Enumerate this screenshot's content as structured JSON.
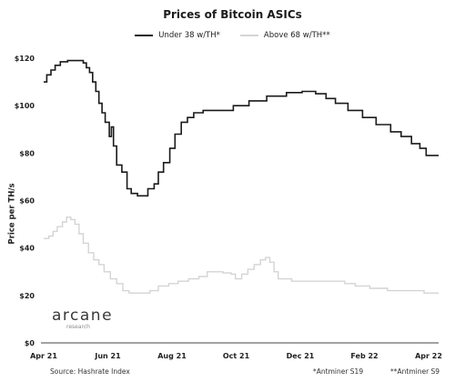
{
  "chart_data": {
    "type": "line",
    "title": "Prices of Bitcoin ASICs",
    "ylabel": "Price per TH/s",
    "xlabel": "",
    "ylim": [
      0,
      120
    ],
    "yticks": [
      "$0",
      "$20",
      "$40",
      "$60",
      "$80",
      "$100",
      "$120"
    ],
    "xticks": [
      "Apr 21",
      "Jun 21",
      "Aug 21",
      "Oct 21",
      "Dec 21",
      "Feb 22",
      "Apr 22"
    ],
    "grid": false,
    "legend_position": "top",
    "series": [
      {
        "name": "Under 38 w/TH*",
        "color": "#1a1a1a",
        "points": [
          [
            "2021-04-01",
            110
          ],
          [
            "2021-04-04",
            113
          ],
          [
            "2021-04-08",
            115
          ],
          [
            "2021-04-12",
            117
          ],
          [
            "2021-04-17",
            118.5
          ],
          [
            "2021-04-24",
            119
          ],
          [
            "2021-05-04",
            119
          ],
          [
            "2021-05-09",
            118
          ],
          [
            "2021-05-12",
            116
          ],
          [
            "2021-05-15",
            114
          ],
          [
            "2021-05-18",
            110
          ],
          [
            "2021-05-21",
            106
          ],
          [
            "2021-05-24",
            101
          ],
          [
            "2021-05-27",
            97
          ],
          [
            "2021-05-30",
            93
          ],
          [
            "2021-06-03",
            87
          ],
          [
            "2021-06-05",
            91
          ],
          [
            "2021-06-07",
            83
          ],
          [
            "2021-06-10",
            75
          ],
          [
            "2021-06-15",
            72
          ],
          [
            "2021-06-20",
            65
          ],
          [
            "2021-06-24",
            63
          ],
          [
            "2021-06-30",
            62
          ],
          [
            "2021-07-08",
            62
          ],
          [
            "2021-07-10",
            65
          ],
          [
            "2021-07-16",
            67
          ],
          [
            "2021-07-20",
            72
          ],
          [
            "2021-07-25",
            76
          ],
          [
            "2021-07-31",
            82
          ],
          [
            "2021-08-05",
            88
          ],
          [
            "2021-08-11",
            93
          ],
          [
            "2021-08-17",
            95
          ],
          [
            "2021-08-23",
            97
          ],
          [
            "2021-09-01",
            98
          ],
          [
            "2021-09-20",
            98
          ],
          [
            "2021-09-30",
            100
          ],
          [
            "2021-10-15",
            102
          ],
          [
            "2021-11-01",
            104
          ],
          [
            "2021-11-20",
            105.5
          ],
          [
            "2021-12-05",
            106
          ],
          [
            "2021-12-18",
            105
          ],
          [
            "2021-12-28",
            103
          ],
          [
            "2022-01-06",
            101
          ],
          [
            "2022-01-18",
            98
          ],
          [
            "2022-02-01",
            95
          ],
          [
            "2022-02-14",
            92
          ],
          [
            "2022-02-28",
            89
          ],
          [
            "2022-03-10",
            87
          ],
          [
            "2022-03-20",
            84
          ],
          [
            "2022-03-28",
            82
          ],
          [
            "2022-04-03",
            79
          ],
          [
            "2022-04-15",
            79
          ]
        ]
      },
      {
        "name": "Above 68 w/TH**",
        "color": "#d4d4d4",
        "points": [
          [
            "2021-04-01",
            44
          ],
          [
            "2021-04-06",
            45
          ],
          [
            "2021-04-10",
            47
          ],
          [
            "2021-04-14",
            49
          ],
          [
            "2021-04-19",
            51
          ],
          [
            "2021-04-23",
            53
          ],
          [
            "2021-04-27",
            52
          ],
          [
            "2021-05-01",
            50
          ],
          [
            "2021-05-05",
            46
          ],
          [
            "2021-05-09",
            42
          ],
          [
            "2021-05-14",
            38
          ],
          [
            "2021-05-19",
            35
          ],
          [
            "2021-05-24",
            33
          ],
          [
            "2021-05-29",
            30
          ],
          [
            "2021-06-04",
            27
          ],
          [
            "2021-06-10",
            25
          ],
          [
            "2021-06-16",
            22
          ],
          [
            "2021-06-22",
            21
          ],
          [
            "2021-07-05",
            21
          ],
          [
            "2021-07-12",
            22
          ],
          [
            "2021-07-20",
            24
          ],
          [
            "2021-07-30",
            25
          ],
          [
            "2021-08-08",
            26
          ],
          [
            "2021-08-18",
            27
          ],
          [
            "2021-08-28",
            28
          ],
          [
            "2021-09-05",
            30
          ],
          [
            "2021-09-20",
            29.5
          ],
          [
            "2021-09-28",
            29
          ],
          [
            "2021-10-02",
            27
          ],
          [
            "2021-10-08",
            29
          ],
          [
            "2021-10-14",
            31
          ],
          [
            "2021-10-20",
            33
          ],
          [
            "2021-10-26",
            35
          ],
          [
            "2021-10-31",
            36
          ],
          [
            "2021-11-04",
            34
          ],
          [
            "2021-11-08",
            30
          ],
          [
            "2021-11-12",
            27
          ],
          [
            "2021-11-25",
            26
          ],
          [
            "2021-12-15",
            26
          ],
          [
            "2022-01-05",
            26
          ],
          [
            "2022-01-15",
            25
          ],
          [
            "2022-01-25",
            24
          ],
          [
            "2022-02-08",
            23
          ],
          [
            "2022-02-25",
            22
          ],
          [
            "2022-03-20",
            22
          ],
          [
            "2022-04-01",
            21
          ],
          [
            "2022-04-15",
            21
          ]
        ]
      }
    ]
  },
  "brand": {
    "name": "arcane",
    "sub": "research"
  },
  "footer": {
    "source": "Source: Hashrate Index",
    "note1": "*Antminer S19",
    "note2": "**Antminer S9"
  }
}
